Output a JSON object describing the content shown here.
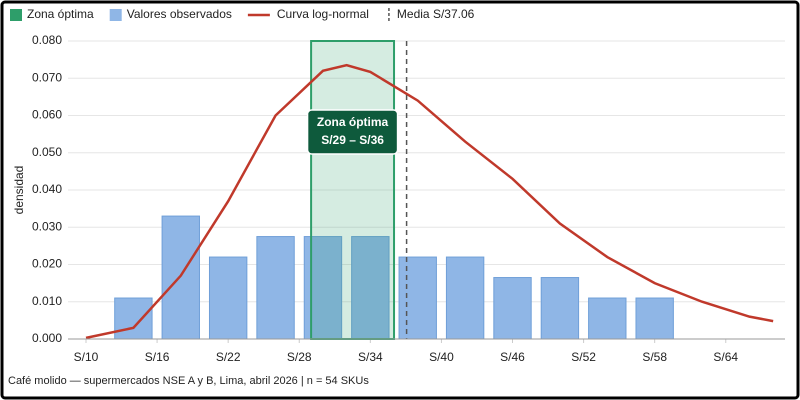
{
  "chart_data": {
    "type": "histogram",
    "y_label": "densidad",
    "caption": "Café molido — supermercados NSE A y B, Lima, abril 2026 | n = 54 SKUs",
    "zone": {
      "name": "Zona óptima",
      "color": "#2e9e6a",
      "range": [
        29,
        36
      ],
      "label": "S/29 – S/36"
    },
    "histogram": {
      "name": "Valores observados",
      "color": "#8fb6e6",
      "bins": [
        12,
        16,
        20,
        24,
        28,
        32,
        36,
        40,
        44,
        48,
        52,
        56,
        60
      ],
      "values": [
        0.011,
        0.033,
        0.022,
        0.0275,
        0.0275,
        0.0275,
        0.022,
        0.022,
        0.0165,
        0.0165,
        0.011,
        0.011
      ]
    },
    "curve": {
      "name": "Curva log-normal",
      "color": "#c0392b",
      "x": [
        10,
        14,
        18,
        22,
        26,
        30,
        32,
        34,
        38,
        42,
        46,
        50,
        54,
        58,
        62,
        66,
        68
      ],
      "values": [
        0.0003,
        0.003,
        0.017,
        0.037,
        0.06,
        0.072,
        0.0735,
        0.0717,
        0.064,
        0.053,
        0.043,
        0.031,
        0.022,
        0.015,
        0.01,
        0.006,
        0.0048
      ]
    },
    "mean": {
      "name": "Media S/37.06",
      "value": 37.06,
      "color": "#555555"
    },
    "xlim": [
      10,
      69
    ],
    "xticks": [
      {
        "value": 10,
        "label": "S/10"
      },
      {
        "value": 16,
        "label": "S/16"
      },
      {
        "value": 22,
        "label": "S/22"
      },
      {
        "value": 28,
        "label": "S/28"
      },
      {
        "value": 34,
        "label": "S/34"
      },
      {
        "value": 40,
        "label": "S/40"
      },
      {
        "value": 46,
        "label": "S/46"
      },
      {
        "value": 52,
        "label": "S/52"
      },
      {
        "value": 58,
        "label": "S/58"
      },
      {
        "value": 64,
        "label": "S/64"
      }
    ],
    "ylim": [
      0,
      0.08
    ],
    "yticks": [
      {
        "value": 0,
        "label": "0.000"
      },
      {
        "value": 0.01,
        "label": "0.010"
      },
      {
        "value": 0.02,
        "label": "0.020"
      },
      {
        "value": 0.03,
        "label": "0.030"
      },
      {
        "value": 0.04,
        "label": "0.040"
      },
      {
        "value": 0.05,
        "label": "0.050"
      },
      {
        "value": 0.06,
        "label": "0.060"
      },
      {
        "value": 0.07,
        "label": "0.070"
      },
      {
        "value": 0.08,
        "label": "0.080"
      }
    ],
    "grid": true
  }
}
